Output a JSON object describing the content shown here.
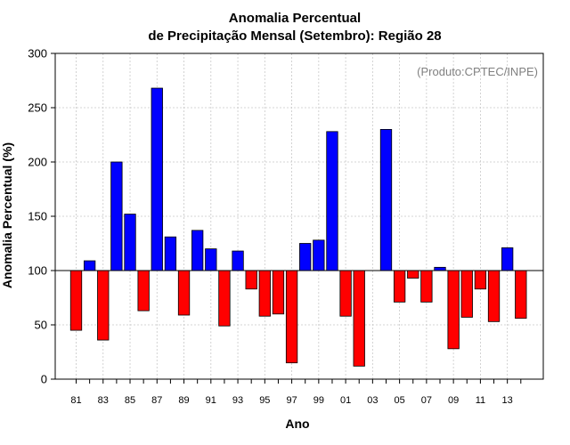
{
  "chart_data": {
    "type": "bar",
    "title": "Anomalia Percentual",
    "subtitle": "de Precipitação Mensal (Setembro): Região 28",
    "xlabel": "Ano",
    "ylabel": "Anomalia Percentual (%)",
    "credit": "(Produto:CPTEC/INPE)",
    "ylim": [
      0,
      300
    ],
    "yticks": [
      0,
      50,
      100,
      150,
      200,
      250,
      300
    ],
    "baseline": 100,
    "grid": true,
    "colors": {
      "above": "#0000ff",
      "below": "#ff0000",
      "outline": "#000000",
      "grid": "#c8c8c8"
    },
    "categories": [
      "81",
      "82",
      "83",
      "84",
      "85",
      "86",
      "87",
      "88",
      "89",
      "90",
      "91",
      "92",
      "93",
      "94",
      "95",
      "96",
      "97",
      "98",
      "99",
      "00",
      "01",
      "02",
      "03",
      "04",
      "05",
      "06",
      "07",
      "08",
      "09",
      "10",
      "11",
      "12",
      "13",
      "14"
    ],
    "xtick_labels": [
      "81",
      "83",
      "85",
      "87",
      "89",
      "91",
      "93",
      "95",
      "97",
      "99",
      "01",
      "03",
      "05",
      "07",
      "09",
      "11",
      "13"
    ],
    "values": [
      45,
      109,
      36,
      200,
      152,
      63,
      268,
      131,
      59,
      137,
      120,
      49,
      118,
      83,
      58,
      60,
      15,
      125,
      128,
      228,
      58,
      12,
      100,
      230,
      71,
      93,
      71,
      103,
      28,
      57,
      83,
      53,
      121,
      56
    ]
  }
}
